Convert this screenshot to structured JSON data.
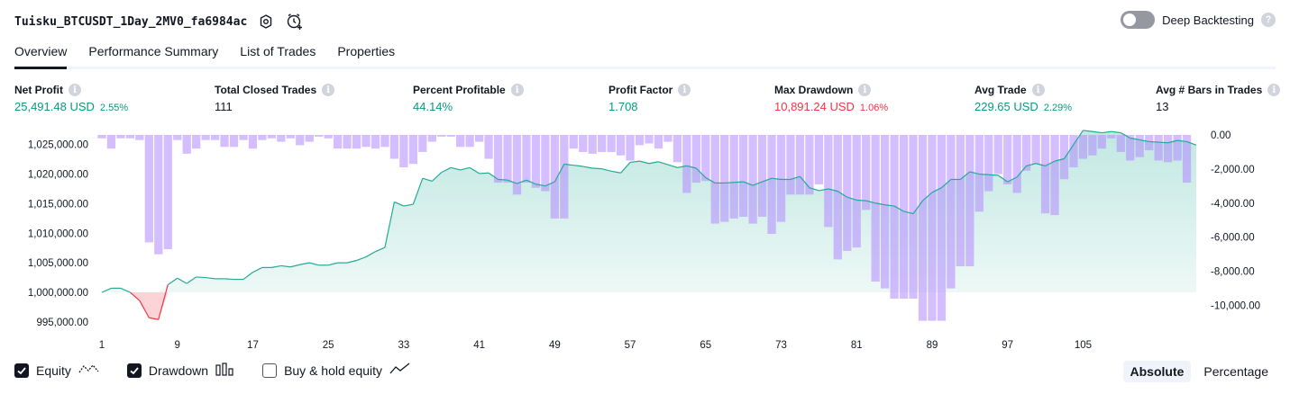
{
  "header": {
    "strategy_name": "Tuisku_BTCUSDT_1Day_2MV0_fa6984ac",
    "deep_backtesting_label": "Deep Backtesting",
    "help_glyph": "?"
  },
  "tabs": [
    {
      "label": "Overview",
      "active": true
    },
    {
      "label": "Performance Summary",
      "active": false
    },
    {
      "label": "List of Trades",
      "active": false
    },
    {
      "label": "Properties",
      "active": false
    }
  ],
  "metrics": {
    "net_profit": {
      "label": "Net Profit",
      "value": "25,491.48 USD",
      "pct": "2.55%"
    },
    "total_closed_trades": {
      "label": "Total Closed Trades",
      "value": "111"
    },
    "percent_profitable": {
      "label": "Percent Profitable",
      "value": "44.14%"
    },
    "profit_factor": {
      "label": "Profit Factor",
      "value": "1.708"
    },
    "max_drawdown": {
      "label": "Max Drawdown",
      "value": "10,891.24 USD",
      "pct": "1.06%"
    },
    "avg_trade": {
      "label": "Avg Trade",
      "value": "229.65 USD",
      "pct": "2.29%"
    },
    "avg_bars": {
      "label": "Avg # Bars in Trades",
      "value": "13"
    },
    "info_glyph": "i"
  },
  "chart_data": {
    "type": "area",
    "x_ticks": [
      "1",
      "9",
      "17",
      "25",
      "33",
      "41",
      "49",
      "57",
      "65",
      "73",
      "81",
      "89",
      "97",
      "105"
    ],
    "x_range": [
      1,
      111
    ],
    "y_left": {
      "ticks": [
        "1,025,000.00",
        "1,020,000.00",
        "1,015,000.00",
        "1,010,000.00",
        "1,005,000.00",
        "1,000,000.00",
        "995,000.00"
      ],
      "range": [
        993000,
        1028000
      ],
      "baseline": 1000000
    },
    "y_right": {
      "ticks": [
        "0.00",
        "-2,000.00",
        "-4,000.00",
        "-6,000.00",
        "-8,000.00",
        "-10,000.00"
      ],
      "range": [
        -11500,
        0
      ]
    },
    "series": [
      {
        "name": "Equity",
        "color_up": "#22ab94",
        "color_down": "#f23645",
        "values": [
          1000000,
          1000700,
          1000700,
          1000000,
          998600,
          995700,
          995400,
          1001300,
          1002400,
          1001500,
          1002600,
          1002500,
          1002300,
          1002300,
          1002200,
          1002200,
          1003400,
          1004200,
          1004200,
          1004500,
          1004300,
          1004700,
          1005000,
          1004600,
          1004600,
          1005000,
          1005000,
          1005400,
          1006000,
          1006900,
          1007600,
          1015300,
          1014600,
          1014900,
          1019300,
          1018800,
          1020300,
          1021100,
          1020700,
          1021100,
          1020100,
          1020200,
          1019100,
          1019000,
          1018400,
          1019000,
          1018300,
          1018000,
          1018700,
          1021700,
          1021500,
          1021300,
          1021000,
          1020900,
          1020500,
          1020200,
          1022000,
          1022200,
          1021800,
          1022100,
          1021600,
          1021100,
          1021400,
          1021000,
          1019400,
          1018500,
          1018500,
          1018600,
          1018700,
          1018100,
          1018700,
          1019300,
          1019100,
          1019100,
          1019600,
          1017700,
          1017200,
          1017500,
          1017100,
          1016100,
          1015600,
          1015500,
          1015100,
          1014800,
          1014600,
          1013700,
          1013300,
          1015500,
          1016900,
          1017700,
          1019100,
          1019100,
          1020400,
          1020000,
          1019900,
          1019800,
          1018700,
          1019500,
          1021400,
          1021800,
          1021400,
          1022200,
          1022600,
          1025000,
          1027400,
          1027200,
          1027000,
          1027200,
          1027000,
          1026100,
          1025800,
          1025500,
          1025400,
          1025300,
          1025700,
          1025500,
          1024900
        ]
      },
      {
        "name": "Drawdown",
        "color": "#b388ff",
        "values": [
          -200,
          -800,
          -200,
          -200,
          -300,
          -6300,
          -7000,
          -6700,
          -300,
          -1100,
          -800,
          -300,
          -300,
          -700,
          -700,
          -300,
          -800,
          -300,
          -200,
          -400,
          -200,
          -600,
          -400,
          -100,
          -200,
          -800,
          -800,
          -800,
          -700,
          -800,
          -700,
          -1400,
          -1900,
          -1700,
          -1000,
          -400,
          -100,
          -100,
          -700,
          -700,
          -400,
          -1400,
          -2800,
          -2800,
          -3500,
          -2800,
          -3100,
          -3300,
          -4900,
          -4900,
          -800,
          -1000,
          -1100,
          -1000,
          -1000,
          -1200,
          -1500,
          -600,
          -500,
          -800,
          -400,
          -1600,
          -3400,
          -2800,
          -2700,
          -5200,
          -5100,
          -4900,
          -4800,
          -5200,
          -4800,
          -5800,
          -5100,
          -3500,
          -3500,
          -3500,
          -2900,
          -5400,
          -7300,
          -6800,
          -6600,
          -4400,
          -8600,
          -9000,
          -9600,
          -9600,
          -9600,
          -10900,
          -10900,
          -10900,
          -9000,
          -7700,
          -7700,
          -4500,
          -3300,
          -2300,
          -2900,
          -3400,
          -2100,
          -1700,
          -4600,
          -4700,
          -2600,
          -1900,
          -1400,
          -1200,
          -800,
          -200,
          -1000,
          -1500,
          -1300,
          -900,
          -1500,
          -1600,
          -1500,
          -2800
        ]
      }
    ]
  },
  "legend": {
    "items": [
      {
        "label": "Equity",
        "checked": true
      },
      {
        "label": "Drawdown",
        "checked": true
      },
      {
        "label": "Buy & hold equity",
        "checked": false
      }
    ],
    "mode_absolute": "Absolute",
    "mode_percentage": "Percentage"
  }
}
